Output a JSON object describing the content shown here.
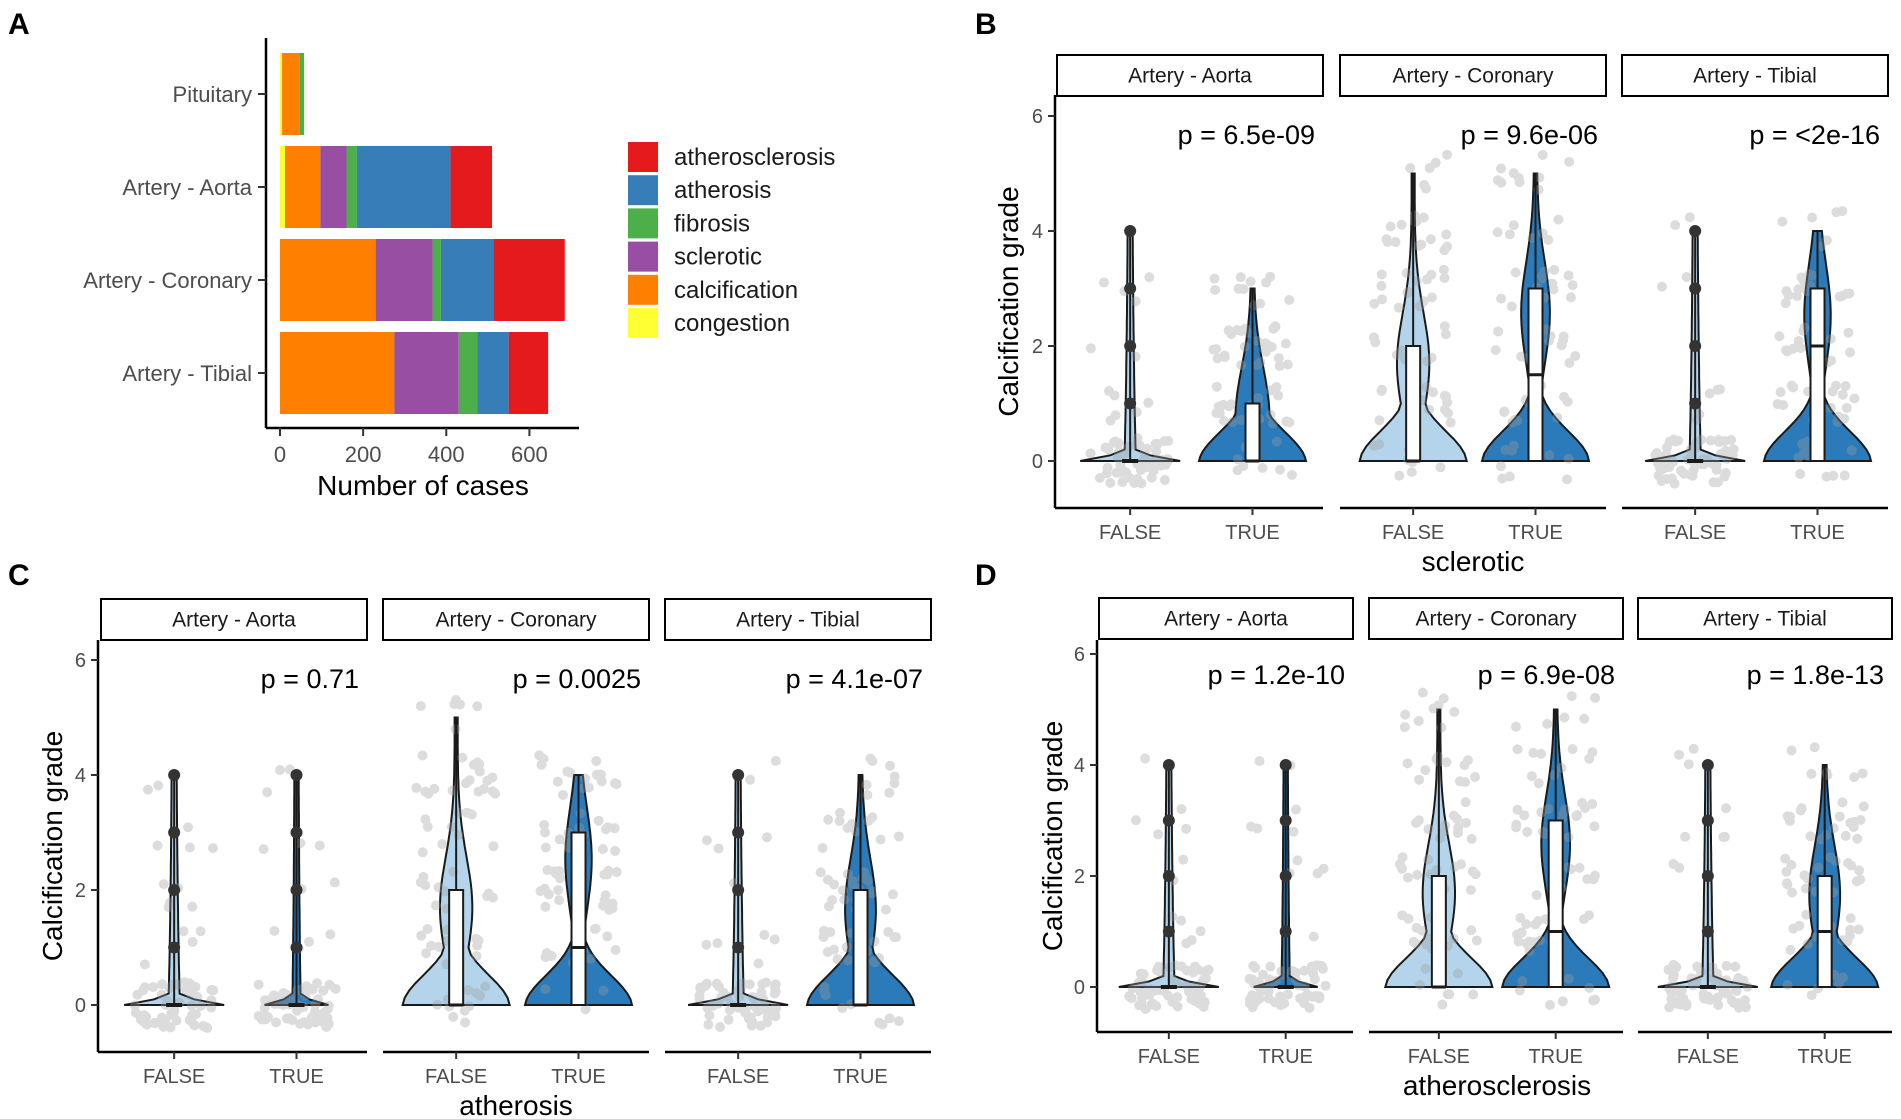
{
  "chart_data": [
    {
      "panel": "A",
      "type": "bar",
      "orientation": "horizontal",
      "stacked": true,
      "categories": [
        "Pituitary",
        "Artery - Aorta",
        "Artery - Coronary",
        "Artery - Tibial"
      ],
      "xlabel": "Number of cases",
      "ylabel": "",
      "xlim": [
        0,
        700
      ],
      "xticks": [
        0,
        200,
        400,
        600
      ],
      "series": [
        {
          "name": "congestion",
          "color": "#FFFF33",
          "values": [
            5,
            12,
            0,
            0
          ]
        },
        {
          "name": "calcification",
          "color": "#FF7F00",
          "values": [
            43,
            85,
            230,
            275
          ]
        },
        {
          "name": "sclerotic",
          "color": "#984EA3",
          "values": [
            0,
            63,
            137,
            155
          ]
        },
        {
          "name": "fibrosis",
          "color": "#4DAF4A",
          "values": [
            10,
            25,
            20,
            45
          ]
        },
        {
          "name": "atherosis",
          "color": "#377EB8",
          "values": [
            0,
            225,
            126,
            75
          ]
        },
        {
          "name": "atherosclerosis",
          "color": "#E41A1C",
          "values": [
            0,
            100,
            172,
            95
          ]
        }
      ],
      "legend": [
        "atherosclerosis",
        "atherosis",
        "fibrosis",
        "sclerotic",
        "calcification",
        "congestion"
      ],
      "legend_position": "right"
    },
    {
      "panel": "B",
      "type": "violin",
      "xlabel": "sclerotic",
      "ylabel": "Calcification grade",
      "ylim": [
        -0.5,
        6.5
      ],
      "yticks": [
        0,
        2,
        4,
        6
      ],
      "groups": [
        "FALSE",
        "TRUE"
      ],
      "facets": [
        {
          "name": "Artery - Aorta",
          "p": "p = 6.5e-09",
          "false": {
            "max": 4,
            "median": 0,
            "q1": 0,
            "q3": 0,
            "outliers": [
              1,
              2,
              3,
              4
            ]
          },
          "true": {
            "max": 3,
            "median": 0,
            "q1": 0,
            "q3": 1,
            "outliers": []
          }
        },
        {
          "name": "Artery - Coronary",
          "p": "p = 9.6e-06",
          "false": {
            "max": 5,
            "median": 0,
            "q1": 0,
            "q3": 2,
            "outliers": []
          },
          "true": {
            "max": 5,
            "median": 1.5,
            "q1": 0,
            "q3": 3,
            "outliers": []
          }
        },
        {
          "name": "Artery - Tibial",
          "p": "p = <2e-16",
          "false": {
            "max": 4,
            "median": 0,
            "q1": 0,
            "q3": 0,
            "outliers": [
              1,
              2,
              3,
              4
            ]
          },
          "true": {
            "max": 4,
            "median": 2,
            "q1": 0,
            "q3": 3,
            "outliers": []
          }
        }
      ]
    },
    {
      "panel": "C",
      "type": "violin",
      "xlabel": "atherosis",
      "ylabel": "Calcification grade",
      "ylim": [
        -0.5,
        6.5
      ],
      "yticks": [
        0,
        2,
        4,
        6
      ],
      "groups": [
        "FALSE",
        "TRUE"
      ],
      "facets": [
        {
          "name": "Artery - Aorta",
          "p": "p = 0.71",
          "false": {
            "max": 4,
            "median": 0,
            "q1": 0,
            "q3": 0,
            "outliers": [
              1,
              2,
              3,
              4
            ]
          },
          "true": {
            "max": 4,
            "median": 0,
            "q1": 0,
            "q3": 0,
            "outliers": [
              1,
              2,
              3,
              4
            ]
          }
        },
        {
          "name": "Artery - Coronary",
          "p": "p = 0.0025",
          "false": {
            "max": 5,
            "median": 0,
            "q1": 0,
            "q3": 2,
            "outliers": []
          },
          "true": {
            "max": 4,
            "median": 1,
            "q1": 0,
            "q3": 3,
            "outliers": []
          }
        },
        {
          "name": "Artery - Tibial",
          "p": "p = 4.1e-07",
          "false": {
            "max": 4,
            "median": 0,
            "q1": 0,
            "q3": 0,
            "outliers": [
              1,
              2,
              3,
              4
            ]
          },
          "true": {
            "max": 4,
            "median": 0,
            "q1": 0,
            "q3": 2,
            "outliers": []
          }
        }
      ]
    },
    {
      "panel": "D",
      "type": "violin",
      "xlabel": "atherosclerosis",
      "ylabel": "Calcification grade",
      "ylim": [
        -0.5,
        6.5
      ],
      "yticks": [
        0,
        2,
        4,
        6
      ],
      "groups": [
        "FALSE",
        "TRUE"
      ],
      "facets": [
        {
          "name": "Artery - Aorta",
          "p": "p = 1.2e-10",
          "false": {
            "max": 4,
            "median": 0,
            "q1": 0,
            "q3": 0,
            "outliers": [
              1,
              2,
              3,
              4
            ]
          },
          "true": {
            "max": 4,
            "median": 0,
            "q1": 0,
            "q3": 0,
            "outliers": [
              1,
              2,
              3,
              4
            ]
          }
        },
        {
          "name": "Artery - Coronary",
          "p": "p = 6.9e-08",
          "false": {
            "max": 5,
            "median": 0,
            "q1": 0,
            "q3": 2,
            "outliers": []
          },
          "true": {
            "max": 5,
            "median": 1,
            "q1": 0,
            "q3": 3,
            "outliers": []
          }
        },
        {
          "name": "Artery - Tibial",
          "p": "p = 1.8e-13",
          "false": {
            "max": 4,
            "median": 0,
            "q1": 0,
            "q3": 0,
            "outliers": [
              1,
              2,
              3,
              4
            ]
          },
          "true": {
            "max": 4,
            "median": 1,
            "q1": 0,
            "q3": 2,
            "outliers": []
          }
        }
      ]
    }
  ],
  "colors": {
    "violin_false": "#B3D4EA",
    "violin_true": "#2B7BBA",
    "jitter": "#9E9E9E",
    "outline": "#1A1A1A"
  }
}
